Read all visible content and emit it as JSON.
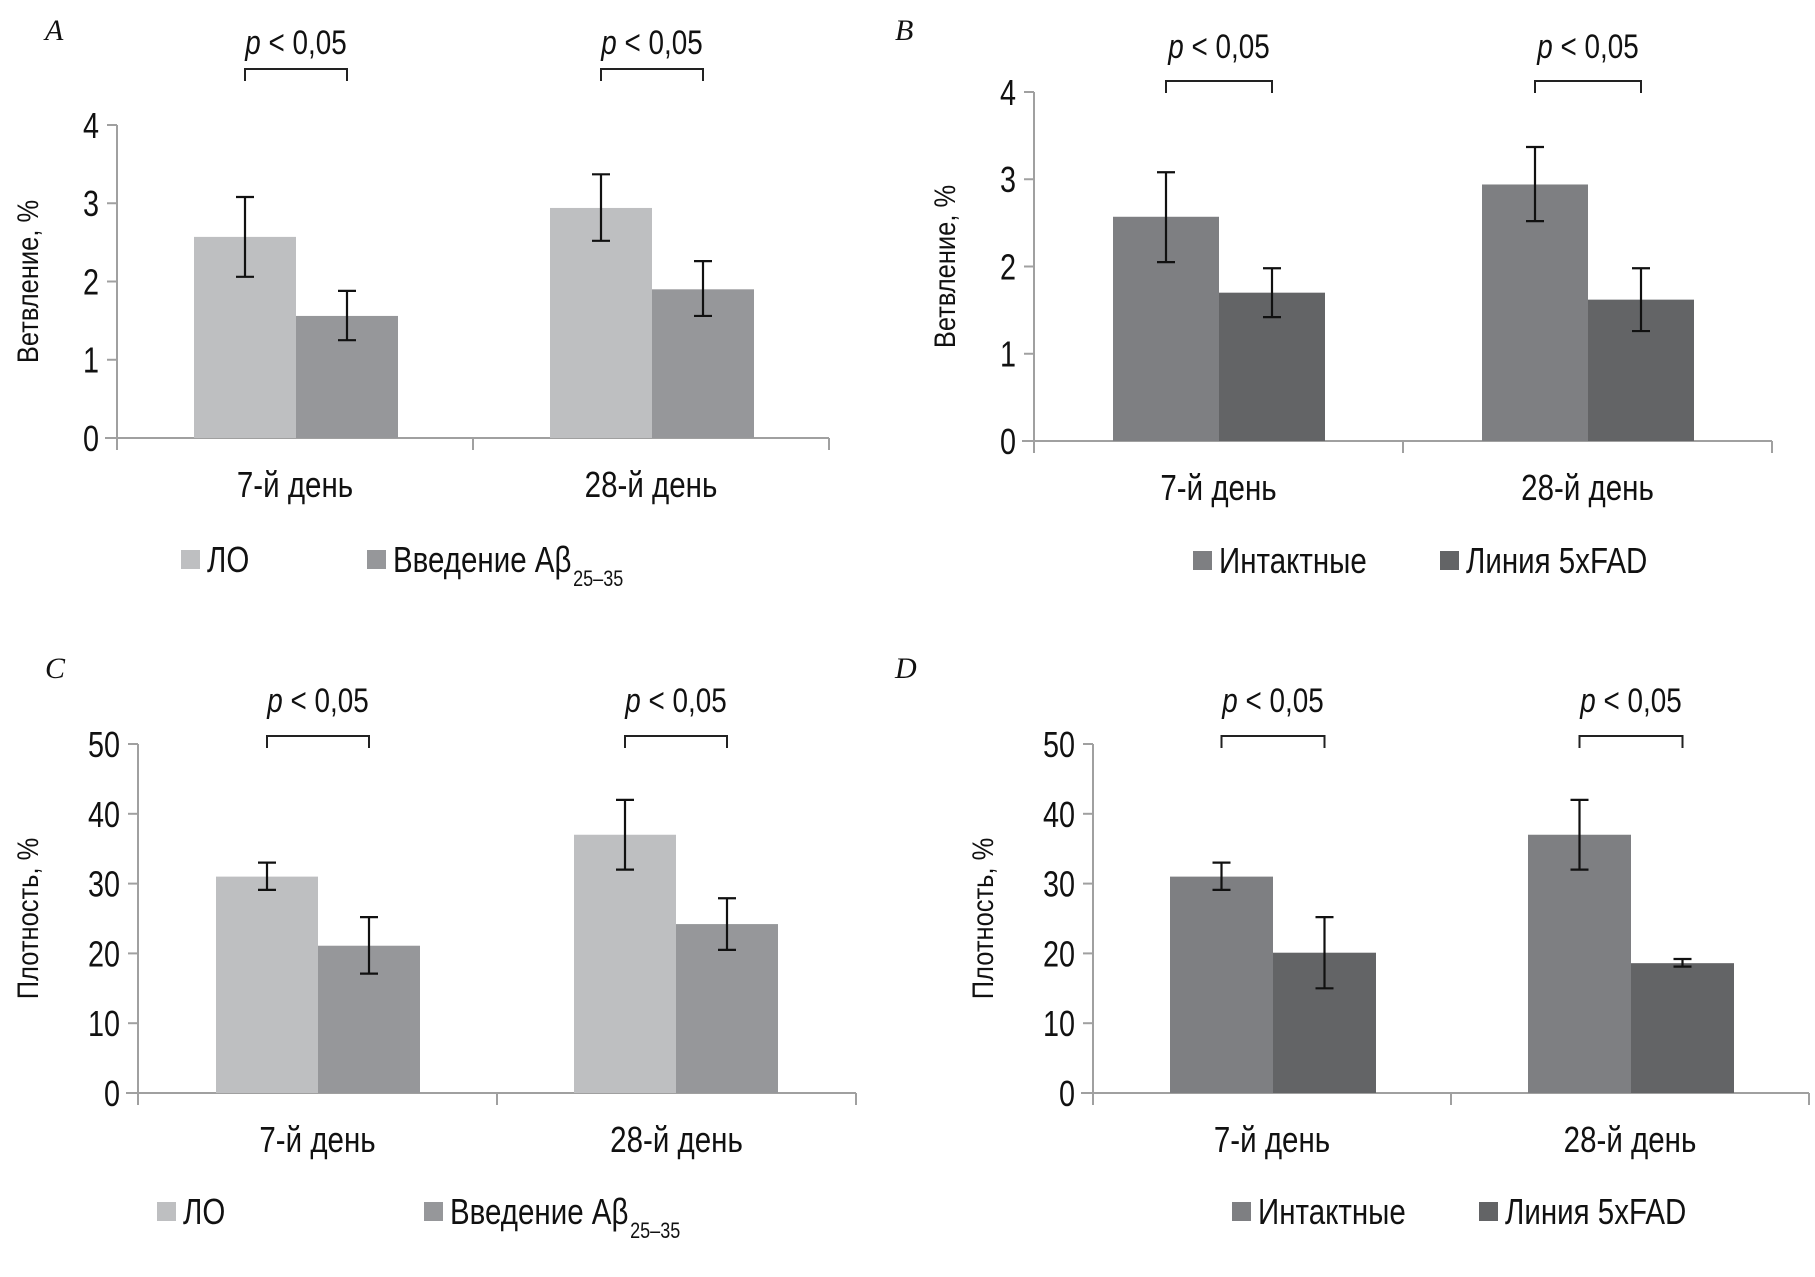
{
  "figure": {
    "significance_label": "p < 0,05",
    "significance_p_symbol": "p",
    "significance_rest": " < 0,05"
  },
  "chart_data": [
    {
      "panel": "A",
      "type": "bar",
      "title": "",
      "xlabel": "",
      "ylabel": "Ветвление, %",
      "ylim": [
        0,
        4
      ],
      "yticks": [
        "0",
        "1",
        "2",
        "3",
        "4"
      ],
      "grid": false,
      "categories": [
        "7-й день",
        "28-й день"
      ],
      "legend_position": "bottom",
      "series": [
        {
          "name": "ЛО",
          "color": "#bebfc1",
          "values": [
            2.57,
            2.94
          ],
          "err_low": [
            2.06,
            2.52
          ],
          "err_high": [
            3.08,
            3.37
          ]
        },
        {
          "name": "Введение Aβ",
          "name_subscript": "25–35",
          "color": "#96979a",
          "values": [
            1.56,
            1.9
          ],
          "err_low": [
            1.25,
            1.56
          ],
          "err_high": [
            1.88,
            2.26
          ]
        }
      ],
      "annotations": [
        "p < 0,05",
        "p < 0,05"
      ]
    },
    {
      "panel": "B",
      "type": "bar",
      "title": "",
      "xlabel": "",
      "ylabel": "Ветвление, %",
      "ylim": [
        0,
        4
      ],
      "yticks": [
        "0",
        "1",
        "2",
        "3",
        "4"
      ],
      "grid": false,
      "categories": [
        "7-й день",
        "28-й день"
      ],
      "legend_position": "bottom-right",
      "series": [
        {
          "name": "Интактные",
          "color": "#7e7f82",
          "values": [
            2.57,
            2.94
          ],
          "err_low": [
            2.05,
            2.52
          ],
          "err_high": [
            3.08,
            3.37
          ]
        },
        {
          "name": "Линия 5xFAD",
          "color": "#636466",
          "values": [
            1.7,
            1.62
          ],
          "err_low": [
            1.42,
            1.26
          ],
          "err_high": [
            1.98,
            1.98
          ]
        }
      ],
      "annotations": [
        "p < 0,05",
        "p < 0,05"
      ]
    },
    {
      "panel": "C",
      "type": "bar",
      "title": "",
      "xlabel": "",
      "ylabel": "Плотность, %",
      "ylim": [
        0,
        50
      ],
      "yticks": [
        "0",
        "10",
        "20",
        "30",
        "40",
        "50"
      ],
      "grid": false,
      "categories": [
        "7-й день",
        "28-й день"
      ],
      "legend_position": "bottom",
      "series": [
        {
          "name": "ЛО",
          "color": "#bebfc1",
          "values": [
            31.0,
            37.0
          ],
          "err_low": [
            29.1,
            32.0
          ],
          "err_high": [
            33.0,
            42.0
          ]
        },
        {
          "name": "Введение Aβ",
          "name_subscript": "25–35",
          "color": "#96979a",
          "values": [
            21.1,
            24.2
          ],
          "err_low": [
            17.1,
            20.5
          ],
          "err_high": [
            25.2,
            27.9
          ]
        }
      ],
      "annotations": [
        "p < 0,05",
        "p < 0,05"
      ]
    },
    {
      "panel": "D",
      "type": "bar",
      "title": "",
      "xlabel": "",
      "ylabel": "Плотность, %",
      "ylim": [
        0,
        50
      ],
      "yticks": [
        "0",
        "10",
        "20",
        "30",
        "40",
        "50"
      ],
      "grid": false,
      "categories": [
        "7-й день",
        "28-й день"
      ],
      "legend_position": "bottom-right",
      "series": [
        {
          "name": "Интактные",
          "color": "#7e7f82",
          "values": [
            31.0,
            37.0
          ],
          "err_low": [
            29.1,
            32.0
          ],
          "err_high": [
            33.0,
            42.0
          ]
        },
        {
          "name": "Линия 5xFAD",
          "color": "#636466",
          "values": [
            20.1,
            18.6
          ],
          "err_low": [
            15.0,
            18.1
          ],
          "err_high": [
            25.2,
            19.2
          ]
        }
      ],
      "annotations": [
        "p < 0,05",
        "p < 0,05"
      ]
    }
  ],
  "colors": {
    "axis": "#a0a0a0",
    "error_bar": "#111111",
    "text": "#111111"
  }
}
